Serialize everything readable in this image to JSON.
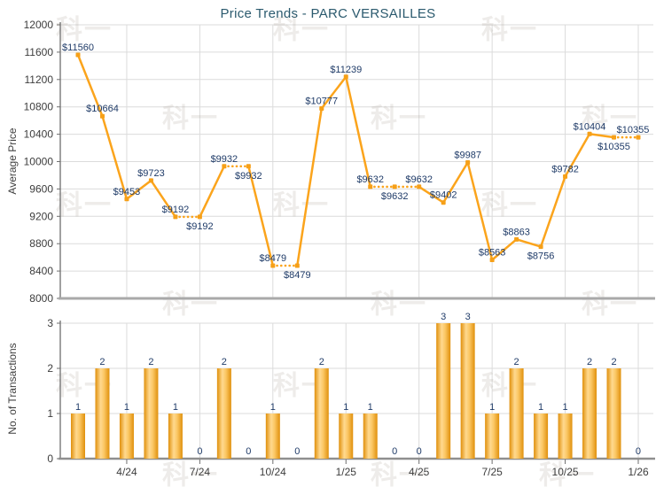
{
  "title": "Price Trends - PARC VERSAILLES",
  "watermark": {
    "text": "科一"
  },
  "colors": {
    "line": "#FBA41C",
    "marker": "#F6A018",
    "bar_dark": "#E0900C",
    "bar_light": "#FFD98F",
    "data_label": "#1F3B68",
    "tick_label": "#3D3D3D",
    "title": "#2B5A6E",
    "grid": "#DBDBDB",
    "axis": "#6E6E6E"
  },
  "chart_data": [
    {
      "type": "line",
      "title": "Price Trends - PARC VERSAILLES",
      "ylabel": "Average Price",
      "ylim": [
        8000,
        12000
      ],
      "yticks": [
        8000,
        8400,
        8800,
        9200,
        9600,
        10000,
        10400,
        10800,
        11200,
        11600,
        12000
      ],
      "xtick_labels": [
        "4/24",
        "7/24",
        "10/24",
        "1/25",
        "4/25",
        "7/25",
        "10/25",
        "1/26"
      ],
      "xtick_month_index": [
        2,
        5,
        8,
        11,
        14,
        17,
        20,
        23
      ],
      "grid": true,
      "values": [
        11560,
        10664,
        9453,
        9723,
        9192,
        9192,
        9932,
        9932,
        8479,
        8479,
        10777,
        11239,
        9632,
        9632,
        9632,
        9402,
        9987,
        8563,
        8863,
        8756,
        9782,
        10404,
        10355,
        10355
      ],
      "point_labels": [
        "$11560",
        "$10664",
        "$9453",
        "$9723",
        "$9192",
        "$9192",
        "$9932",
        "$9932",
        "$8479",
        "$8479",
        "$10777",
        "$11239",
        "$9632",
        "$9632",
        "$9632",
        "$9402",
        "$9987",
        "$8563",
        "$8863",
        "$8756",
        "$9782",
        "$10404",
        "$10355",
        "$10355"
      ],
      "label_side": [
        "above",
        "above",
        "above",
        "above",
        "above",
        "below",
        "above",
        "below",
        "above",
        "below",
        "above",
        "above",
        "above",
        "below",
        "above",
        "above",
        "above",
        "above",
        "above",
        "below",
        "above",
        "above",
        "below",
        "above"
      ],
      "dotted_segment_into_index": [
        5,
        7,
        9,
        13,
        14,
        23
      ]
    },
    {
      "type": "bar",
      "ylabel": "No. of Transactions",
      "ylim": [
        0,
        3
      ],
      "yticks": [
        0,
        1,
        2,
        3
      ],
      "xtick_labels": [
        "4/24",
        "7/24",
        "10/24",
        "1/25",
        "4/25",
        "7/25",
        "10/25",
        "1/26"
      ],
      "xtick_month_index": [
        2,
        5,
        8,
        11,
        14,
        17,
        20,
        23
      ],
      "grid": true,
      "values": [
        1,
        2,
        1,
        2,
        1,
        0,
        2,
        0,
        1,
        0,
        2,
        1,
        1,
        0,
        0,
        3,
        3,
        1,
        2,
        1,
        1,
        2,
        2,
        0
      ],
      "bar_labels": [
        "1",
        "2",
        "1",
        "2",
        "1",
        "0",
        "2",
        "0",
        "1",
        "0",
        "2",
        "1",
        "1",
        "0",
        "0",
        "3",
        "3",
        "1",
        "2",
        "1",
        "1",
        "2",
        "2",
        "0"
      ]
    }
  ]
}
